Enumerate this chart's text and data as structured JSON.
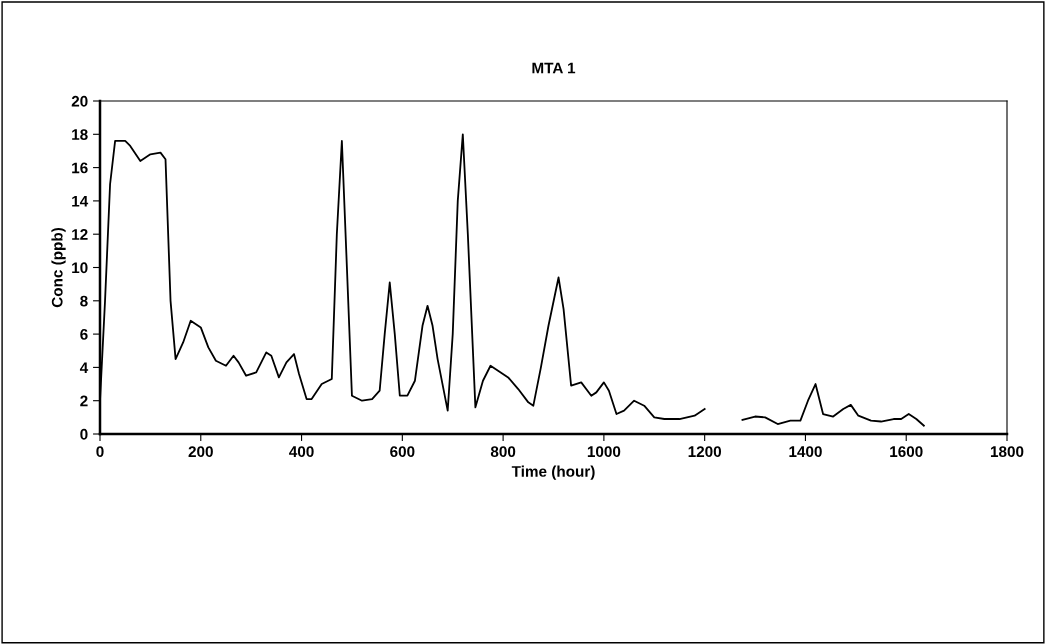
{
  "chart_data": {
    "type": "line",
    "title": "MTA 1",
    "xlabel": "Time (hour)",
    "ylabel": "Conc (ppb)",
    "x": [
      0,
      10,
      20,
      30,
      50,
      60,
      80,
      100,
      120,
      130,
      140,
      150,
      165,
      180,
      200,
      215,
      230,
      250,
      265,
      275,
      290,
      310,
      330,
      340,
      355,
      370,
      385,
      395,
      410,
      420,
      440,
      460,
      470,
      480,
      490,
      500,
      520,
      540,
      555,
      565,
      575,
      585,
      595,
      610,
      625,
      640,
      650,
      660,
      670,
      690,
      700,
      710,
      720,
      730,
      745,
      760,
      775,
      790,
      810,
      830,
      850,
      860,
      875,
      890,
      910,
      920,
      935,
      955,
      975,
      985,
      1000,
      1010,
      1025,
      1040,
      1060,
      1080,
      1100,
      1120,
      1150,
      1180,
      1200,
      1240,
      1275,
      1300,
      1320,
      1345,
      1370,
      1390,
      1405,
      1420,
      1435,
      1455,
      1475,
      1490,
      1505,
      1530,
      1550,
      1575,
      1590,
      1605,
      1620,
      1635
    ],
    "series": [
      {
        "color": "#000000",
        "values": [
          2,
          8,
          15,
          17.6,
          17.6,
          17.3,
          16.4,
          16.8,
          16.9,
          16.5,
          8,
          4.5,
          5.5,
          6.8,
          6.4,
          5.2,
          4.4,
          4.1,
          4.7,
          4.3,
          3.5,
          3.7,
          4.9,
          4.7,
          3.4,
          4.3,
          4.8,
          3.6,
          2.1,
          2.1,
          3.0,
          3.3,
          12,
          17.6,
          10,
          2.3,
          2.0,
          2.1,
          2.6,
          6,
          9.1,
          6,
          2.3,
          2.3,
          3.2,
          6.5,
          7.7,
          6.5,
          4.5,
          1.4,
          6,
          14,
          18,
          12,
          1.6,
          3.2,
          4.1,
          3.8,
          3.4,
          2.7,
          1.9,
          1.7,
          4,
          6.5,
          9.4,
          7.5,
          2.9,
          3.1,
          2.3,
          2.5,
          3.1,
          2.6,
          1.2,
          1.4,
          2.0,
          1.7,
          1.0,
          0.9,
          0.9,
          1.1,
          1.5,
          null,
          0.85,
          1.05,
          1.0,
          0.6,
          0.8,
          0.8,
          2.0,
          3.0,
          1.2,
          1.05,
          1.5,
          1.75,
          1.1,
          0.8,
          0.75,
          0.9,
          0.9,
          1.2,
          0.9,
          0.5
        ]
      }
    ],
    "xlim": [
      0,
      1800
    ],
    "xticks": [
      0,
      200,
      400,
      600,
      800,
      1000,
      1200,
      1400,
      1600,
      1800
    ],
    "ylim": [
      0,
      20
    ],
    "yticks": [
      0,
      2,
      4,
      6,
      8,
      10,
      12,
      14,
      16,
      18,
      20
    ],
    "grid": false,
    "legend": false,
    "marker": "none",
    "line_style": "solid"
  }
}
